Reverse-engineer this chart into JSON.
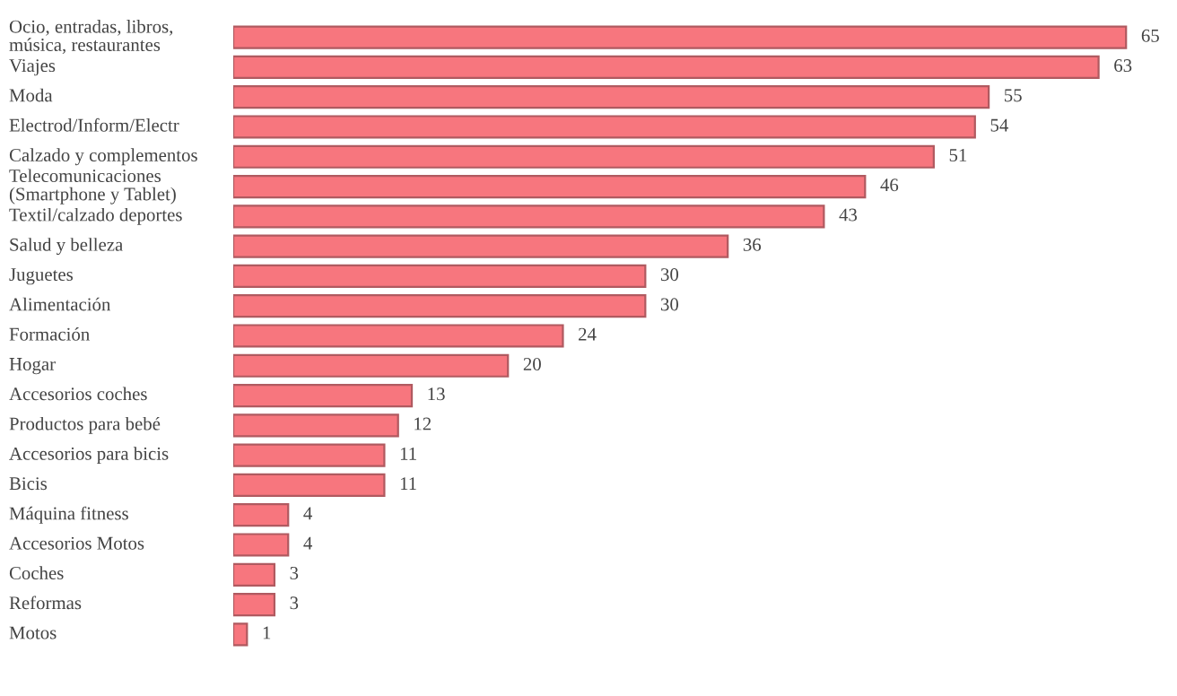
{
  "chart_data": {
    "type": "bar",
    "orientation": "horizontal",
    "data_labels": true,
    "categories": [
      "Ocio, entradas, libros,\nmúsica, restaurantes",
      "Viajes",
      "Moda",
      "Electrod/Inform/Electr",
      "Calzado y complementos",
      "Telecomunicaciones\n(Smartphone y Tablet)",
      "Textil/calzado deportes",
      "Salud y belleza",
      "Juguetes",
      "Alimentación",
      "Formación",
      "Hogar",
      "Accesorios coches",
      "Productos para bebé",
      "Accesorios para bicis",
      "Bicis",
      "Máquina fitness",
      "Accesorios Motos",
      "Coches",
      "Reformas",
      "Motos"
    ],
    "values": [
      65,
      63,
      55,
      54,
      51,
      46,
      43,
      36,
      30,
      30,
      24,
      20,
      13,
      12,
      11,
      11,
      4,
      4,
      3,
      3,
      1
    ],
    "color": "#f7767e"
  }
}
